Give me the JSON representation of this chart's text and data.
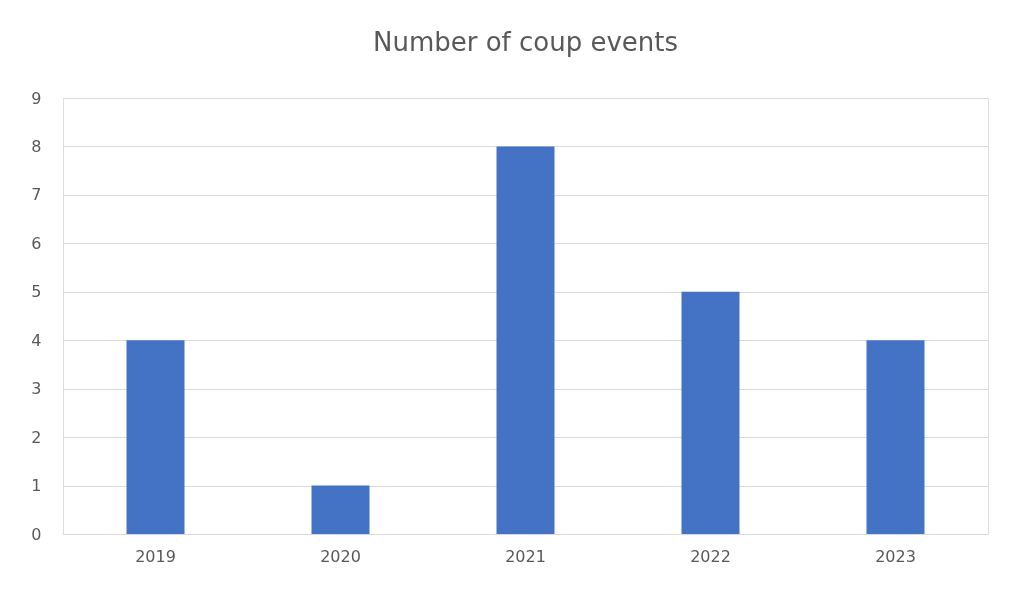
{
  "chart_data": {
    "type": "bar",
    "title": "Number of coup events",
    "categories": [
      "2019",
      "2020",
      "2021",
      "2022",
      "2023"
    ],
    "values": [
      4,
      1,
      8,
      5,
      4
    ],
    "color": "#4472c4",
    "ylim": [
      0,
      9
    ],
    "yticks": [
      0,
      1,
      2,
      3,
      4,
      5,
      6,
      7,
      8,
      9
    ],
    "grid": "y"
  }
}
